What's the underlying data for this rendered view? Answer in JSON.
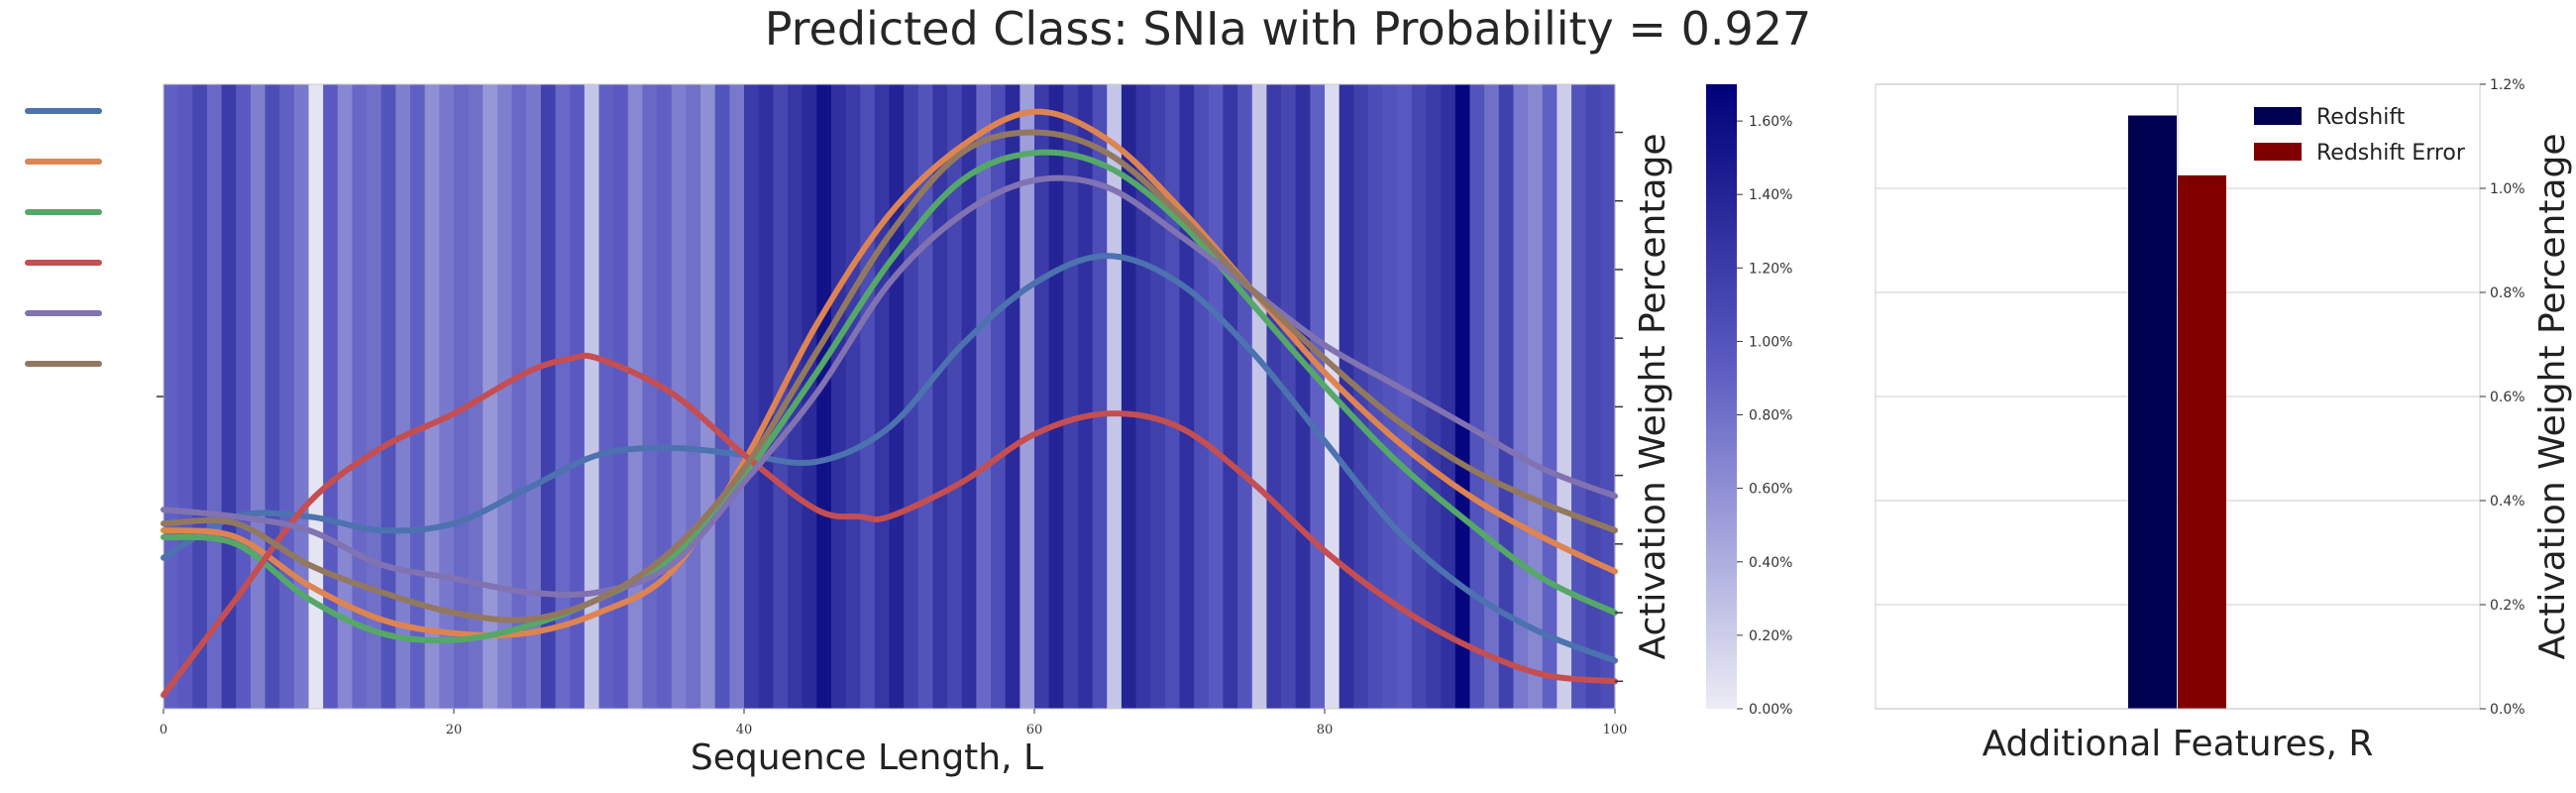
{
  "title": "Predicted Class: SNIa with Probability = 0.927",
  "chart_data": [
    {
      "type": "heatmap",
      "name": "sequence-attention",
      "xlabel": "Sequence Length, L",
      "xlim": [
        0,
        100
      ],
      "xticks": [
        0,
        20,
        40,
        60,
        80,
        100
      ],
      "colorbar": {
        "label": "Activation Weight Percentage",
        "range": [
          0,
          1.7
        ],
        "ticks": [
          "0.00%",
          "0.20%",
          "0.40%",
          "0.60%",
          "0.80%",
          "1.00%",
          "1.20%",
          "1.40%",
          "1.60%"
        ],
        "low_color": "#ececf5",
        "high_color": "#00007a"
      },
      "weights": [
        0.9,
        0.95,
        1.1,
        0.85,
        1.2,
        0.95,
        0.7,
        1.05,
        0.9,
        0.75,
        0.05,
        0.95,
        0.65,
        0.85,
        0.8,
        1.0,
        0.7,
        0.9,
        0.6,
        0.75,
        0.85,
        0.8,
        0.55,
        0.7,
        0.85,
        0.75,
        1.15,
        0.85,
        0.95,
        0.25,
        0.9,
        0.95,
        0.65,
        0.85,
        0.9,
        0.7,
        0.8,
        0.6,
        1.0,
        0.75,
        1.2,
        1.3,
        1.1,
        1.25,
        1.35,
        1.55,
        1.3,
        1.2,
        1.05,
        1.25,
        1.4,
        1.15,
        1.0,
        1.25,
        1.1,
        1.3,
        0.85,
        1.05,
        1.35,
        0.5,
        1.2,
        1.4,
        1.15,
        1.3,
        1.05,
        0.25,
        1.4,
        1.25,
        1.15,
        1.05,
        1.3,
        1.05,
        0.95,
        1.25,
        1.0,
        0.25,
        1.2,
        1.1,
        1.3,
        0.9,
        0.1,
        1.3,
        1.15,
        1.05,
        1.0,
        0.95,
        1.1,
        1.2,
        1.3,
        1.65,
        1.0,
        0.8,
        1.15,
        0.75,
        0.65,
        0.9,
        0.2,
        1.0,
        1.1,
        1.05
      ],
      "series": [
        {
          "color": "#4c72b0",
          "points": [
            [
              0,
              -0.5
            ],
            [
              5,
              -0.2
            ],
            [
              10,
              -0.2
            ],
            [
              15,
              -0.3
            ],
            [
              20,
              -0.25
            ],
            [
              25,
              0.0
            ],
            [
              30,
              0.25
            ],
            [
              35,
              0.3
            ],
            [
              40,
              0.25
            ],
            [
              45,
              0.2
            ],
            [
              50,
              0.45
            ],
            [
              55,
              1.05
            ],
            [
              60,
              1.5
            ],
            [
              65,
              1.7
            ],
            [
              70,
              1.5
            ],
            [
              75,
              1.0
            ],
            [
              80,
              0.35
            ],
            [
              85,
              -0.3
            ],
            [
              90,
              -0.75
            ],
            [
              95,
              -1.05
            ],
            [
              100,
              -1.25
            ]
          ]
        },
        {
          "color": "#dd8452",
          "points": [
            [
              0,
              -0.3
            ],
            [
              5,
              -0.35
            ],
            [
              10,
              -0.7
            ],
            [
              15,
              -0.95
            ],
            [
              20,
              -1.05
            ],
            [
              25,
              -1.05
            ],
            [
              30,
              -0.9
            ],
            [
              35,
              -0.6
            ],
            [
              40,
              0.2
            ],
            [
              45,
              1.2
            ],
            [
              50,
              2.0
            ],
            [
              55,
              2.5
            ],
            [
              60,
              2.75
            ],
            [
              65,
              2.55
            ],
            [
              70,
              2.05
            ],
            [
              75,
              1.45
            ],
            [
              80,
              0.85
            ],
            [
              85,
              0.35
            ],
            [
              90,
              -0.05
            ],
            [
              95,
              -0.35
            ],
            [
              100,
              -0.6
            ]
          ]
        },
        {
          "color": "#55a868",
          "points": [
            [
              0,
              -0.35
            ],
            [
              5,
              -0.4
            ],
            [
              10,
              -0.8
            ],
            [
              15,
              -1.05
            ],
            [
              20,
              -1.1
            ],
            [
              25,
              -1.0
            ],
            [
              30,
              -0.8
            ],
            [
              35,
              -0.5
            ],
            [
              40,
              0.1
            ],
            [
              45,
              0.85
            ],
            [
              50,
              1.65
            ],
            [
              55,
              2.25
            ],
            [
              60,
              2.45
            ],
            [
              65,
              2.35
            ],
            [
              70,
              1.95
            ],
            [
              75,
              1.35
            ],
            [
              80,
              0.75
            ],
            [
              85,
              0.2
            ],
            [
              90,
              -0.25
            ],
            [
              95,
              -0.65
            ],
            [
              100,
              -0.9
            ]
          ]
        },
        {
          "color": "#c44e52",
          "points": [
            [
              0,
              -1.5
            ],
            [
              5,
              -0.8
            ],
            [
              10,
              -0.1
            ],
            [
              15,
              0.3
            ],
            [
              20,
              0.55
            ],
            [
              25,
              0.85
            ],
            [
              28,
              0.95
            ],
            [
              30,
              0.95
            ],
            [
              35,
              0.7
            ],
            [
              40,
              0.25
            ],
            [
              45,
              -0.15
            ],
            [
              48,
              -0.2
            ],
            [
              50,
              -0.2
            ],
            [
              55,
              0.05
            ],
            [
              60,
              0.4
            ],
            [
              65,
              0.55
            ],
            [
              70,
              0.45
            ],
            [
              75,
              0.05
            ],
            [
              80,
              -0.45
            ],
            [
              85,
              -0.85
            ],
            [
              90,
              -1.15
            ],
            [
              95,
              -1.35
            ],
            [
              100,
              -1.4
            ]
          ]
        },
        {
          "color": "#8172b2",
          "points": [
            [
              0,
              -0.15
            ],
            [
              5,
              -0.2
            ],
            [
              10,
              -0.3
            ],
            [
              15,
              -0.55
            ],
            [
              20,
              -0.65
            ],
            [
              25,
              -0.75
            ],
            [
              30,
              -0.75
            ],
            [
              35,
              -0.55
            ],
            [
              40,
              0.05
            ],
            [
              45,
              0.7
            ],
            [
              50,
              1.5
            ],
            [
              55,
              2.0
            ],
            [
              60,
              2.25
            ],
            [
              65,
              2.2
            ],
            [
              70,
              1.85
            ],
            [
              75,
              1.45
            ],
            [
              80,
              1.05
            ],
            [
              85,
              0.75
            ],
            [
              90,
              0.45
            ],
            [
              95,
              0.15
            ],
            [
              100,
              -0.05
            ]
          ]
        },
        {
          "color": "#937860",
          "points": [
            [
              0,
              -0.25
            ],
            [
              5,
              -0.25
            ],
            [
              10,
              -0.55
            ],
            [
              15,
              -0.75
            ],
            [
              20,
              -0.9
            ],
            [
              25,
              -0.95
            ],
            [
              30,
              -0.8
            ],
            [
              35,
              -0.45
            ],
            [
              40,
              0.15
            ],
            [
              45,
              1.0
            ],
            [
              50,
              1.85
            ],
            [
              55,
              2.45
            ],
            [
              60,
              2.6
            ],
            [
              65,
              2.45
            ],
            [
              70,
              2.0
            ],
            [
              75,
              1.45
            ],
            [
              80,
              0.95
            ],
            [
              85,
              0.5
            ],
            [
              90,
              0.15
            ],
            [
              95,
              -0.1
            ],
            [
              100,
              -0.3
            ]
          ]
        }
      ],
      "ylim": [
        -1.6,
        2.95
      ]
    },
    {
      "type": "bar",
      "name": "additional-features",
      "xlabel": "Additional Features, R",
      "ylabel": "Activation Weight Percentage",
      "ylim": [
        0,
        1.2
      ],
      "yticks": [
        "0.0%",
        "0.2%",
        "0.4%",
        "0.6%",
        "0.8%",
        "1.0%",
        "1.2%"
      ],
      "legend_position": "top-right",
      "series": [
        {
          "name": "Redshift",
          "value": 1.14,
          "color": "#000050"
        },
        {
          "name": "Redshift Error",
          "value": 1.025,
          "color": "#800000"
        }
      ]
    }
  ]
}
